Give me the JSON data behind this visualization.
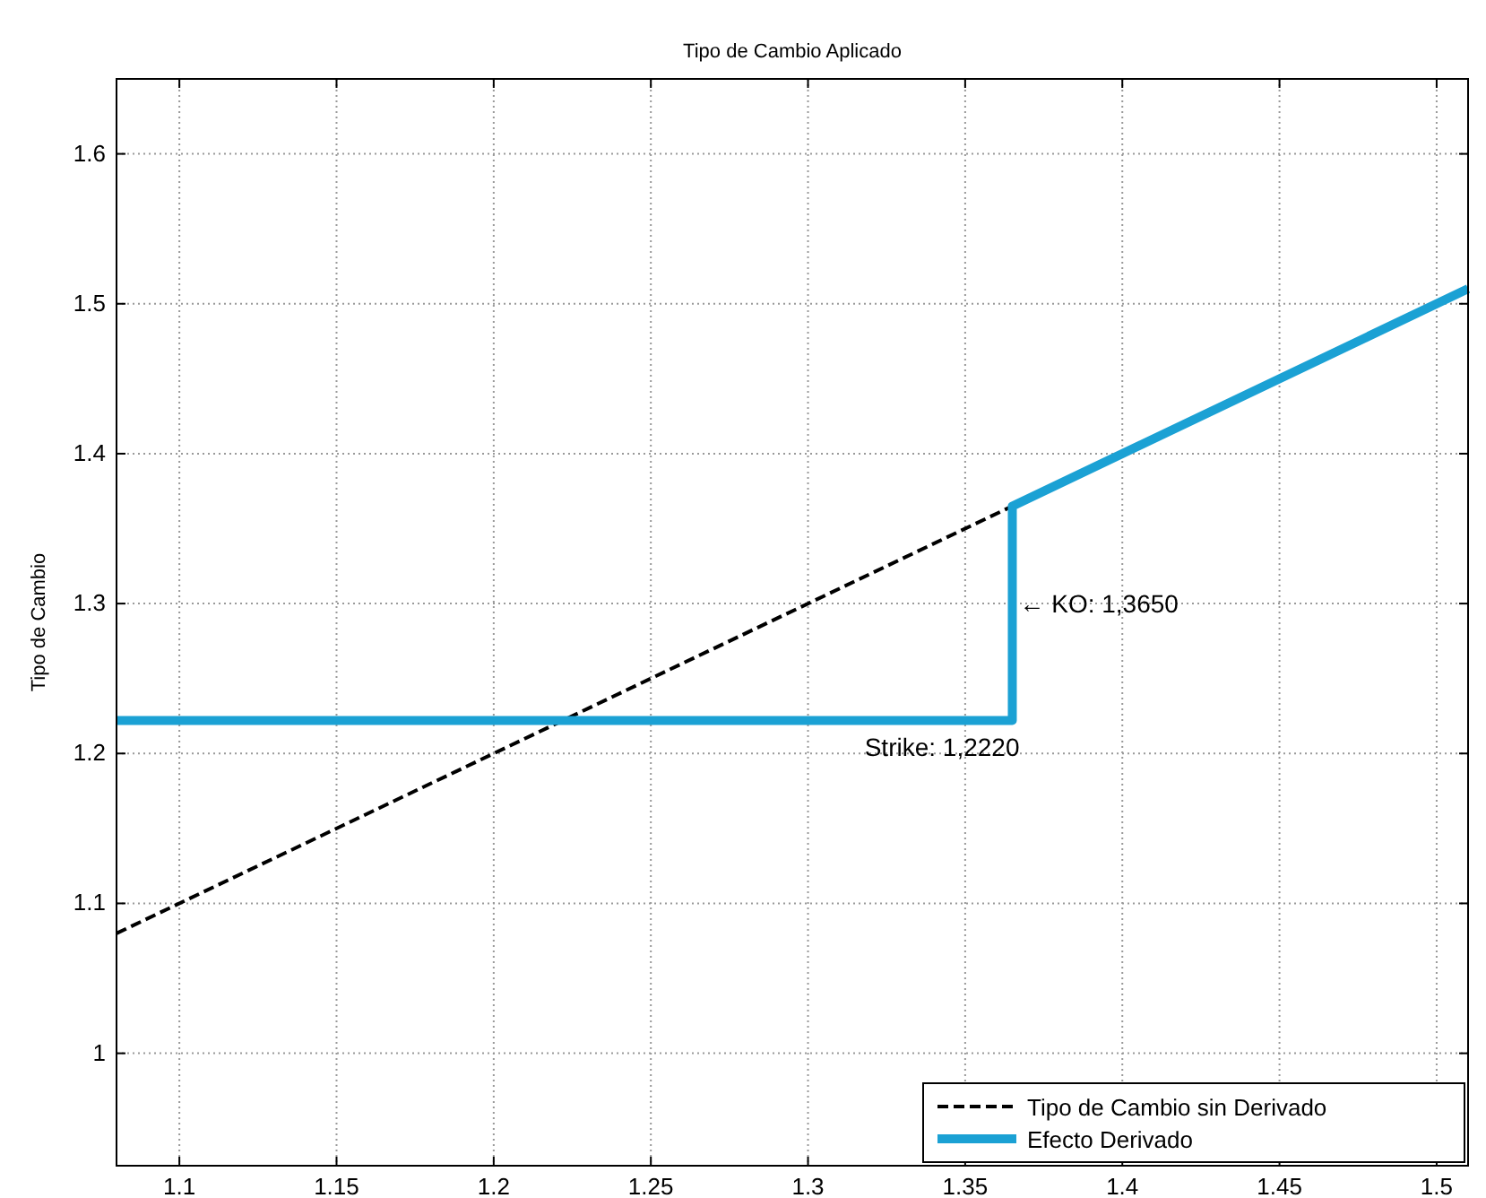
{
  "chart_data": {
    "type": "line",
    "title": "Tipo de Cambio Aplicado",
    "ylabel": "Tipo de Cambio",
    "xlim": [
      1.08,
      1.51
    ],
    "xticks": [
      1.1,
      1.15,
      1.2,
      1.25,
      1.3,
      1.35,
      1.4,
      1.45,
      1.5
    ],
    "ylim": [
      0.925,
      1.65
    ],
    "yticks": [
      1,
      1.1,
      1.2,
      1.3,
      1.4,
      1.5,
      1.6
    ],
    "grid": true,
    "legend": "bottom right",
    "marker": "none",
    "series": [
      {
        "name": "Tipo de Cambio sin Derivado",
        "color": "#000000",
        "line_style": "dashed",
        "x": [
          1.08,
          1.365
        ],
        "values": [
          1.08,
          1.365
        ]
      },
      {
        "name": "Efecto Derivado",
        "color": "#1ba1d4",
        "line_style": "solid",
        "x": [
          1.08,
          1.365,
          1.365,
          1.51
        ],
        "values": [
          1.222,
          1.222,
          1.365,
          1.51
        ]
      }
    ],
    "annotations": [
      {
        "text": "← KO: 1,3650",
        "x": 1.365,
        "y": 1.3
      },
      {
        "text": "Strike: 1,2220",
        "x": 1.365,
        "y": 1.222
      }
    ]
  }
}
